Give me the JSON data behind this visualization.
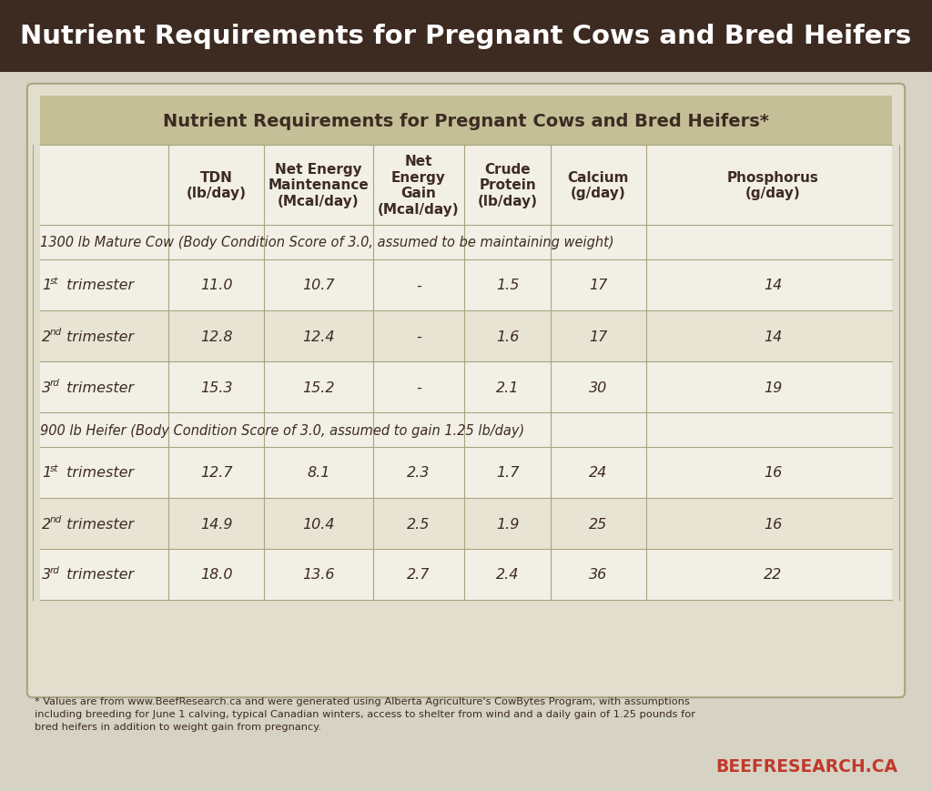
{
  "title_bar": "Nutrient Requirements for Pregnant Cows and Bred Heifers",
  "title_bar_bg": "#3d2b22",
  "title_bar_fg": "#ffffff",
  "table_title": "Nutrient Requirements for Pregnant Cows and Bred Heifers*",
  "table_title_bg": "#c4bf96",
  "table_title_fg": "#3d2b22",
  "outer_bg": "#e2dece",
  "table_bg": "#f2f0e6",
  "row_alt_bg": "#e8e4d4",
  "border_color": "#a8a480",
  "page_bg": "#d6d2c4",
  "col_headers": [
    "TDN\n(lb/day)",
    "Net Energy\nMaintenance\n(Mcal/day)",
    "Net\nEnergy\nGain\n(Mcal/day)",
    "Crude\nProtein\n(lb/day)",
    "Calcium\n(g/day)",
    "Phosphorus\n(g/day)"
  ],
  "section1_label": "1300 lb Mature Cow (Body Condition Score of 3.0, assumed to be maintaining weight)",
  "section2_label": "900 lb Heifer (Body Condition Score of 3.0, assumed to gain 1.25 lb/day)",
  "rows": [
    {
      "num": "1",
      "sup": "st",
      "tdn": "11.0",
      "nem": "10.7",
      "neg": "-",
      "cp": "1.5",
      "ca": "17",
      "ph": "14"
    },
    {
      "num": "2",
      "sup": "nd",
      "tdn": "12.8",
      "nem": "12.4",
      "neg": "-",
      "cp": "1.6",
      "ca": "17",
      "ph": "14"
    },
    {
      "num": "3",
      "sup": "rd",
      "tdn": "15.3",
      "nem": "15.2",
      "neg": "-",
      "cp": "2.1",
      "ca": "30",
      "ph": "19"
    },
    {
      "num": "1",
      "sup": "st",
      "tdn": "12.7",
      "nem": "8.1",
      "neg": "2.3",
      "cp": "1.7",
      "ca": "24",
      "ph": "16"
    },
    {
      "num": "2",
      "sup": "nd",
      "tdn": "14.9",
      "nem": "10.4",
      "neg": "2.5",
      "cp": "1.9",
      "ca": "25",
      "ph": "16"
    },
    {
      "num": "3",
      "sup": "rd",
      "tdn": "18.0",
      "nem": "13.6",
      "neg": "2.7",
      "cp": "2.4",
      "ca": "36",
      "ph": "22"
    }
  ],
  "footnote_line1": "* Values are from www.BeefResearch.ca and were generated using Alberta Agriculture's CowBytes Program, with assumptions",
  "footnote_line2": "including breeding for June 1 calving, typical Canadian winters, access to shelter from wind and a daily gain of 1.25 pounds for",
  "footnote_line3": "bred heifers in addition to weight gain from pregnancy.",
  "watermark": "BEEFRESEARCH.CA",
  "watermark_color": "#c0392b",
  "text_color": "#3d2b22"
}
